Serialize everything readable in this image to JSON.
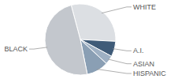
{
  "chart_data": {
    "type": "pie",
    "categories": [
      "WHITE",
      "A.I.",
      "ASIAN",
      "HISPANIC",
      "BLACK"
    ],
    "values": [
      30,
      7,
      4,
      10,
      49
    ],
    "colors": [
      "#dcdfe3",
      "#3f5b78",
      "#9eb0c3",
      "#8a9fb4",
      "#c3c7cd"
    ]
  }
}
